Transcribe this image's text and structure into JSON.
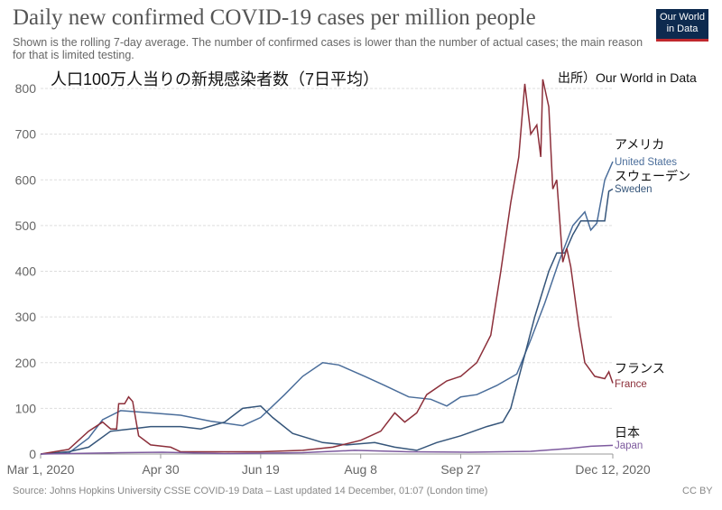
{
  "header": {
    "title": "Daily new confirmed COVID-19 cases per million people",
    "subtitle": "Shown is the rolling 7-day average. The number of confirmed cases is lower than the number of actual cases; the main reason for that is limited testing.",
    "logo_line1": "Our World",
    "logo_line2": "in Data",
    "jp_title": "人口100万人当りの新規感染者数（7日平均）",
    "jp_source": "出所）Our World in Data"
  },
  "footer": {
    "source": "Source: Johns Hopkins University CSSE COVID-19 Data – Last updated 14 December, 01:07 (London time)",
    "license": "CC BY"
  },
  "chart_data": {
    "type": "line",
    "title": "Daily new confirmed COVID-19 cases per million people",
    "xlim": [
      "2020-03-01",
      "2020-12-12"
    ],
    "ylim": [
      0,
      800
    ],
    "grid": true,
    "x_ticks": [
      "Mar 1, 2020",
      "Apr 30",
      "Jun 19",
      "Aug 8",
      "Sep 27",
      "Dec 12, 2020"
    ],
    "x_tick_dates": [
      "2020-03-01",
      "2020-04-30",
      "2020-06-19",
      "2020-08-08",
      "2020-09-27",
      "2020-12-12"
    ],
    "y_ticks": [
      0,
      100,
      200,
      300,
      400,
      500,
      600,
      700,
      800
    ],
    "legend": "labels at line ends",
    "series": [
      {
        "name": "United States",
        "name_jp": "アメリカ",
        "color": "#4a6d9a",
        "points": [
          [
            "2020-03-01",
            0
          ],
          [
            "2020-03-15",
            2
          ],
          [
            "2020-03-25",
            35
          ],
          [
            "2020-04-01",
            75
          ],
          [
            "2020-04-10",
            95
          ],
          [
            "2020-04-25",
            90
          ],
          [
            "2020-05-10",
            85
          ],
          [
            "2020-05-25",
            72
          ],
          [
            "2020-06-10",
            62
          ],
          [
            "2020-06-19",
            80
          ],
          [
            "2020-07-01",
            130
          ],
          [
            "2020-07-10",
            170
          ],
          [
            "2020-07-20",
            200
          ],
          [
            "2020-07-28",
            195
          ],
          [
            "2020-08-10",
            170
          ],
          [
            "2020-08-20",
            150
          ],
          [
            "2020-09-01",
            125
          ],
          [
            "2020-09-12",
            120
          ],
          [
            "2020-09-20",
            105
          ],
          [
            "2020-09-27",
            125
          ],
          [
            "2020-10-05",
            130
          ],
          [
            "2020-10-15",
            150
          ],
          [
            "2020-10-25",
            175
          ],
          [
            "2020-11-01",
            250
          ],
          [
            "2020-11-08",
            330
          ],
          [
            "2020-11-15",
            420
          ],
          [
            "2020-11-22",
            500
          ],
          [
            "2020-11-28",
            530
          ],
          [
            "2020-12-01",
            490
          ],
          [
            "2020-12-04",
            505
          ],
          [
            "2020-12-08",
            600
          ],
          [
            "2020-12-12",
            640
          ]
        ]
      },
      {
        "name": "Sweden",
        "name_jp": "スウェーデン",
        "color": "#35557a",
        "points": [
          [
            "2020-03-01",
            0
          ],
          [
            "2020-03-15",
            5
          ],
          [
            "2020-03-25",
            15
          ],
          [
            "2020-04-05",
            50
          ],
          [
            "2020-04-15",
            55
          ],
          [
            "2020-04-25",
            60
          ],
          [
            "2020-05-10",
            60
          ],
          [
            "2020-05-20",
            55
          ],
          [
            "2020-06-01",
            70
          ],
          [
            "2020-06-10",
            100
          ],
          [
            "2020-06-19",
            105
          ],
          [
            "2020-06-25",
            80
          ],
          [
            "2020-07-05",
            45
          ],
          [
            "2020-07-20",
            25
          ],
          [
            "2020-08-01",
            20
          ],
          [
            "2020-08-15",
            25
          ],
          [
            "2020-08-25",
            15
          ],
          [
            "2020-09-05",
            8
          ],
          [
            "2020-09-15",
            25
          ],
          [
            "2020-09-27",
            40
          ],
          [
            "2020-10-10",
            60
          ],
          [
            "2020-10-18",
            70
          ],
          [
            "2020-10-22",
            100
          ],
          [
            "2020-10-28",
            200
          ],
          [
            "2020-11-03",
            300
          ],
          [
            "2020-11-10",
            400
          ],
          [
            "2020-11-14",
            440
          ],
          [
            "2020-11-18",
            440
          ],
          [
            "2020-11-22",
            480
          ],
          [
            "2020-11-26",
            510
          ],
          [
            "2020-12-02",
            510
          ],
          [
            "2020-12-08",
            510
          ],
          [
            "2020-12-10",
            575
          ],
          [
            "2020-12-12",
            580
          ]
        ]
      },
      {
        "name": "France",
        "name_jp": "フランス",
        "color": "#8c2f3a",
        "points": [
          [
            "2020-03-01",
            0
          ],
          [
            "2020-03-15",
            10
          ],
          [
            "2020-03-25",
            50
          ],
          [
            "2020-04-01",
            70
          ],
          [
            "2020-04-05",
            55
          ],
          [
            "2020-04-08",
            55
          ],
          [
            "2020-04-09",
            110
          ],
          [
            "2020-04-12",
            110
          ],
          [
            "2020-04-14",
            125
          ],
          [
            "2020-04-16",
            115
          ],
          [
            "2020-04-19",
            40
          ],
          [
            "2020-04-25",
            20
          ],
          [
            "2020-05-05",
            15
          ],
          [
            "2020-05-10",
            5
          ],
          [
            "2020-06-01",
            5
          ],
          [
            "2020-06-19",
            5
          ],
          [
            "2020-07-10",
            8
          ],
          [
            "2020-07-25",
            15
          ],
          [
            "2020-08-08",
            30
          ],
          [
            "2020-08-18",
            50
          ],
          [
            "2020-08-25",
            90
          ],
          [
            "2020-08-30",
            70
          ],
          [
            "2020-09-05",
            90
          ],
          [
            "2020-09-10",
            130
          ],
          [
            "2020-09-20",
            160
          ],
          [
            "2020-09-27",
            170
          ],
          [
            "2020-10-05",
            200
          ],
          [
            "2020-10-12",
            260
          ],
          [
            "2020-10-17",
            400
          ],
          [
            "2020-10-22",
            550
          ],
          [
            "2020-10-26",
            650
          ],
          [
            "2020-10-29",
            810
          ],
          [
            "2020-11-01",
            700
          ],
          [
            "2020-11-04",
            720
          ],
          [
            "2020-11-06",
            650
          ],
          [
            "2020-11-07",
            820
          ],
          [
            "2020-11-10",
            760
          ],
          [
            "2020-11-12",
            580
          ],
          [
            "2020-11-14",
            600
          ],
          [
            "2020-11-17",
            420
          ],
          [
            "2020-11-19",
            450
          ],
          [
            "2020-11-21",
            410
          ],
          [
            "2020-11-25",
            280
          ],
          [
            "2020-11-28",
            200
          ],
          [
            "2020-12-03",
            170
          ],
          [
            "2020-12-08",
            165
          ],
          [
            "2020-12-10",
            180
          ],
          [
            "2020-12-12",
            155
          ]
        ]
      },
      {
        "name": "Japan",
        "name_jp": "日本",
        "color": "#7d5a9e",
        "points": [
          [
            "2020-03-01",
            0
          ],
          [
            "2020-04-10",
            3
          ],
          [
            "2020-05-01",
            4
          ],
          [
            "2020-06-01",
            1
          ],
          [
            "2020-07-10",
            3
          ],
          [
            "2020-08-05",
            8
          ],
          [
            "2020-09-01",
            5
          ],
          [
            "2020-10-01",
            4
          ],
          [
            "2020-11-01",
            6
          ],
          [
            "2020-11-20",
            12
          ],
          [
            "2020-12-01",
            17
          ],
          [
            "2020-12-12",
            19
          ]
        ]
      }
    ]
  }
}
